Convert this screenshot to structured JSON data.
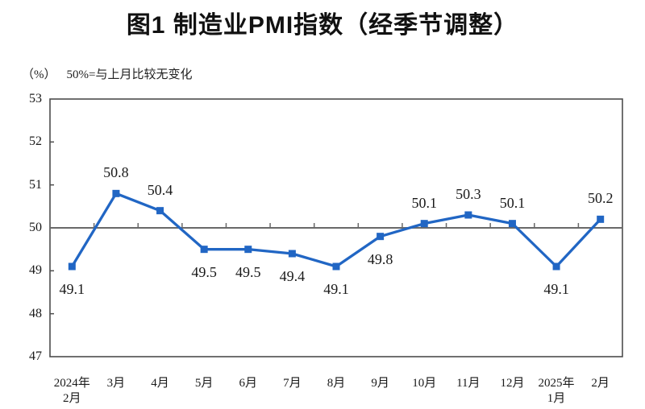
{
  "chart_data": {
    "type": "line",
    "title": "图1  制造业PMI指数（经季节调整）",
    "unit_label": "（%）",
    "reference_note": "50%=与上月比较无变化",
    "categories": [
      [
        "2024年",
        "2月"
      ],
      [
        "3月"
      ],
      [
        "4月"
      ],
      [
        "5月"
      ],
      [
        "6月"
      ],
      [
        "7月"
      ],
      [
        "8月"
      ],
      [
        "9月"
      ],
      [
        "10月"
      ],
      [
        "11月"
      ],
      [
        "12月"
      ],
      [
        "2025年",
        "1月"
      ],
      [
        "2月"
      ]
    ],
    "values": [
      49.1,
      50.8,
      50.4,
      49.5,
      49.5,
      49.4,
      49.1,
      49.8,
      50.1,
      50.3,
      50.1,
      49.1,
      50.2
    ],
    "data_labels": [
      "49.1",
      "50.8",
      "50.4",
      "49.5",
      "49.5",
      "49.4",
      "49.1",
      "49.8",
      "50.1",
      "50.3",
      "50.1",
      "49.1",
      "50.2"
    ],
    "label_pos": [
      "below",
      "above",
      "above",
      "below",
      "below",
      "below",
      "below",
      "below",
      "above",
      "above",
      "above",
      "below",
      "above"
    ],
    "ylim": [
      47,
      53
    ],
    "ytick_step": 1,
    "yticks": [
      "47",
      "48",
      "49",
      "50",
      "51",
      "52",
      "53"
    ],
    "reference_line": 50,
    "grid": "off",
    "legend": "none",
    "marker": "square",
    "line_color": "#2166C4",
    "axis_color": "#4d4d4d",
    "ref_line_color": "#696969",
    "text_color": "#1a1a1a"
  }
}
